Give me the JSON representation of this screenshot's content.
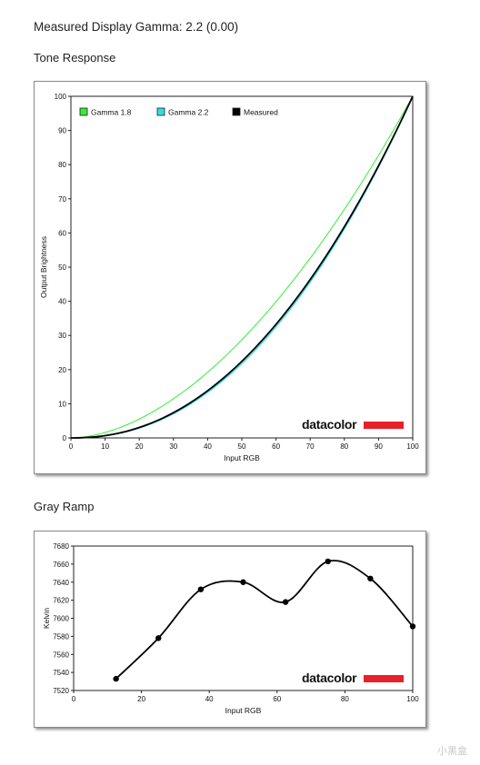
{
  "page": {
    "heading": "Measured Display Gamma: 2.2 (0.00)",
    "watermark": "小黑盒"
  },
  "colors": {
    "gamma18": "#33ee33",
    "gamma22": "#33dddd",
    "measured": "#000000",
    "brand_bar": "#e8202a"
  },
  "brand": {
    "text": "datacolor"
  },
  "chart_data": [
    {
      "type": "line",
      "title": "Tone Response",
      "xlabel": "Input RGB",
      "ylabel": "Output Brightness",
      "xlim": [
        0,
        100
      ],
      "ylim": [
        0,
        100
      ],
      "xticks": [
        0,
        10,
        20,
        30,
        40,
        50,
        60,
        70,
        80,
        90,
        100
      ],
      "yticks": [
        0,
        10,
        20,
        30,
        40,
        50,
        60,
        70,
        80,
        90,
        100
      ],
      "legend_position": "top-left",
      "series": [
        {
          "name": "Gamma 1.8",
          "gamma": 1.8,
          "color": "#33ee33"
        },
        {
          "name": "Gamma 2.2",
          "gamma": 2.2,
          "color": "#33dddd"
        },
        {
          "name": "Measured",
          "gamma": 2.2,
          "color": "#000000"
        }
      ]
    },
    {
      "type": "line",
      "title": "Gray Ramp",
      "xlabel": "Input RGB",
      "ylabel": "Kelvin",
      "xlim": [
        0,
        100
      ],
      "ylim": [
        7520,
        7680
      ],
      "xticks": [
        0,
        20,
        40,
        60,
        80,
        100
      ],
      "yticks": [
        7520,
        7540,
        7560,
        7580,
        7600,
        7620,
        7640,
        7660,
        7680
      ],
      "series": [
        {
          "x": [
            12.5,
            25,
            37.5,
            50,
            62.5,
            75,
            87.5,
            100
          ],
          "y": [
            7533,
            7578,
            7632,
            7640,
            7618,
            7663,
            7644,
            7591
          ]
        }
      ]
    }
  ]
}
